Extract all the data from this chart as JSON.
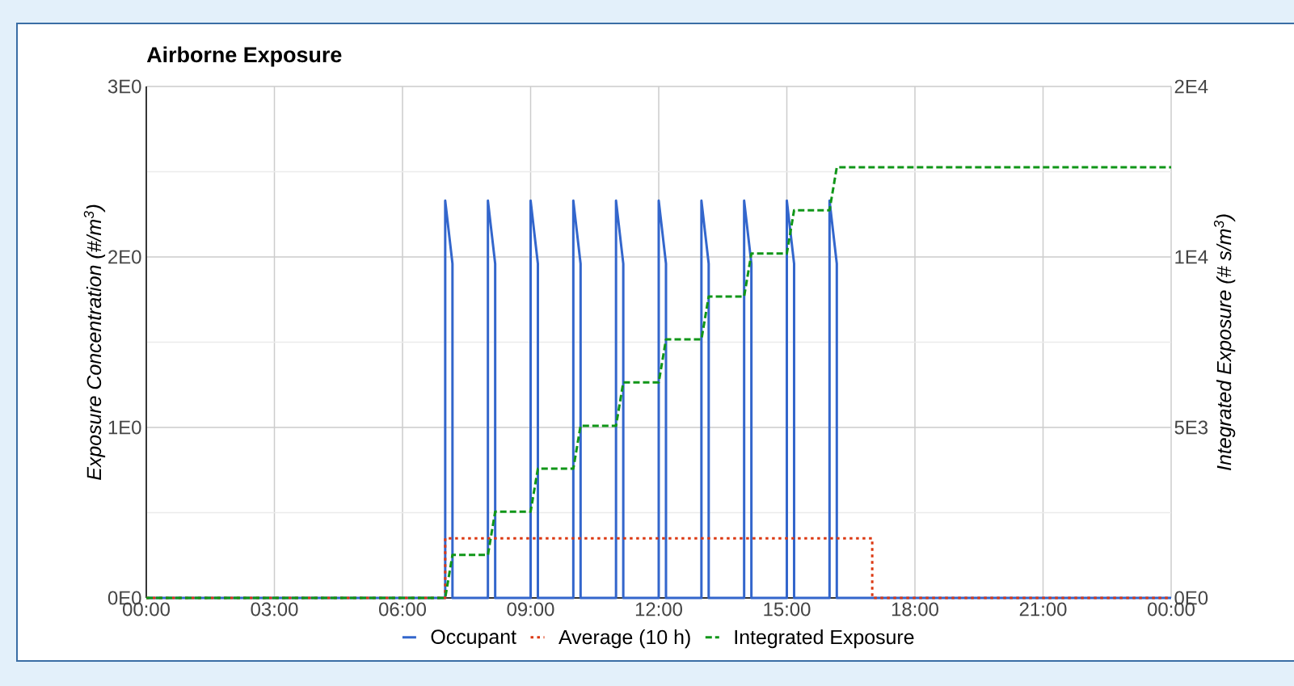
{
  "chart_data": {
    "type": "line",
    "title": "Airborne Exposure",
    "ylabel": "Exposure Concentration (#/m$^{3}$)",
    "y2label": "Integrated Exposure (# s/m$^{3}$)",
    "xlim": [
      0,
      24
    ],
    "xticks": [
      {
        "value": 0,
        "label": "00:00"
      },
      {
        "value": 3,
        "label": "03:00"
      },
      {
        "value": 6,
        "label": "06:00"
      },
      {
        "value": 9,
        "label": "09:00"
      },
      {
        "value": 12,
        "label": "12:00"
      },
      {
        "value": 15,
        "label": "15:00"
      },
      {
        "value": 18,
        "label": "18:00"
      },
      {
        "value": 21,
        "label": "21:00"
      },
      {
        "value": 24,
        "label": "00:00"
      }
    ],
    "ylim": [
      0,
      3
    ],
    "yticks": [
      {
        "value": 0,
        "label": "0E0"
      },
      {
        "value": 1,
        "label": "1E0"
      },
      {
        "value": 2,
        "label": "2E0"
      },
      {
        "value": 3,
        "label": "3E0"
      }
    ],
    "y2lim": [
      0,
      15000
    ],
    "y2ticks": [
      {
        "value": 0,
        "label": "0E0"
      },
      {
        "value": 5000,
        "label": "5E3"
      },
      {
        "value": 10000,
        "label": "1E4"
      },
      {
        "value": 15000,
        "label": "2E4"
      }
    ],
    "grid": true,
    "legend": "bottom",
    "series": [
      {
        "name": "Occupant",
        "color": "#3366cc",
        "line_style": "solid",
        "x": [
          0,
          7,
          7,
          7.17,
          7.17,
          8,
          8,
          8.17,
          8.17,
          9,
          9,
          9.17,
          9.17,
          10,
          10,
          10.17,
          10.17,
          11,
          11,
          11.17,
          11.17,
          12,
          12,
          12.17,
          12.17,
          13,
          13,
          13.17,
          13.17,
          14,
          14,
          14.17,
          14.17,
          15,
          15,
          15.17,
          15.17,
          16,
          16,
          16.17,
          16.17,
          24
        ],
        "values": [
          0,
          0,
          2.33,
          1.96,
          0,
          0,
          2.33,
          1.96,
          0,
          0,
          2.33,
          1.96,
          0,
          0,
          2.33,
          1.96,
          0,
          0,
          2.33,
          1.96,
          0,
          0,
          2.33,
          1.96,
          0,
          0,
          2.33,
          1.96,
          0,
          0,
          2.33,
          1.96,
          0,
          0,
          2.33,
          1.96,
          0,
          0,
          2.33,
          1.96,
          0,
          0
        ]
      },
      {
        "name": "Average (10 h)",
        "color": "#dc3912",
        "line_style": "dotted",
        "x": [
          0,
          7,
          7,
          17,
          17,
          24
        ],
        "values": [
          0,
          0,
          0.35,
          0.35,
          0,
          0
        ]
      },
      {
        "name": "Integrated Exposure",
        "color": "#109618",
        "line_style": "dashed",
        "axis": "y2",
        "x": [
          0,
          7,
          7.17,
          8,
          8.17,
          9,
          9.17,
          10,
          10.17,
          11,
          11.17,
          12,
          12.17,
          13,
          13.17,
          14,
          14.17,
          15,
          15.17,
          16,
          16.17,
          24
        ],
        "values": [
          0,
          0,
          1260,
          1260,
          2530,
          2530,
          3790,
          3790,
          5050,
          5050,
          6320,
          6320,
          7580,
          7580,
          8840,
          8840,
          10100,
          10100,
          11370,
          11370,
          12630,
          12630
        ]
      }
    ]
  }
}
